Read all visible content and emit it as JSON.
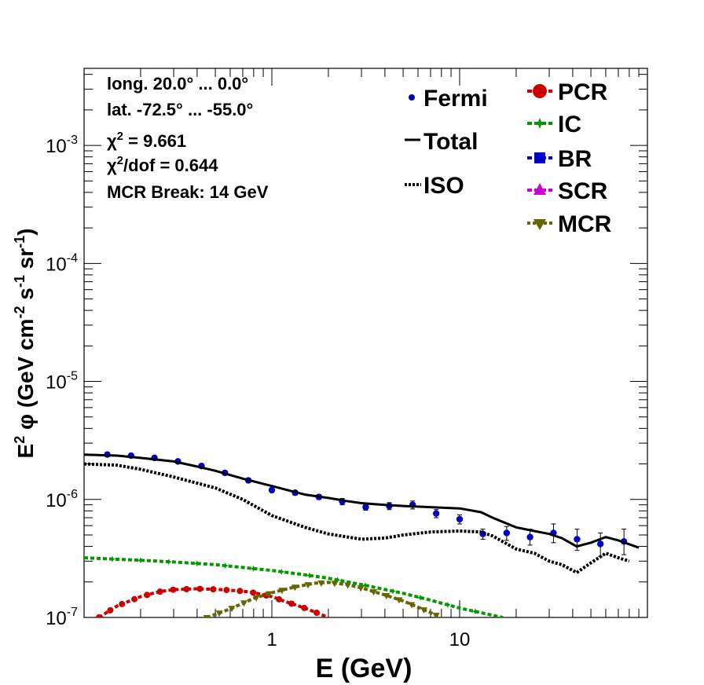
{
  "chart_data": {
    "type": "line",
    "x_scale": "log",
    "y_scale": "log",
    "xlim": [
      0.1,
      100
    ],
    "ylim": [
      1e-07,
      0.0045
    ],
    "xlabel": "E (GeV)",
    "ylabel": {
      "pre": "E",
      "sup1": "2",
      "phi": " φ (GeV cm",
      "sup2": "-2",
      "mid1": " s",
      "sup3": "-1",
      "mid2": " sr",
      "sup4": "-1",
      "post": ")"
    },
    "x_ticks": [
      {
        "v": 1,
        "label": "1"
      },
      {
        "v": 10,
        "label": "10"
      }
    ],
    "y_ticks": [
      {
        "v": 1e-07,
        "base": "10",
        "exp": "-7"
      },
      {
        "v": 1e-06,
        "base": "10",
        "exp": "-6"
      },
      {
        "v": 1e-05,
        "base": "10",
        "exp": "-5"
      },
      {
        "v": 0.0001,
        "base": "10",
        "exp": "-4"
      },
      {
        "v": 0.001,
        "base": "10",
        "exp": "-3"
      }
    ],
    "annotations": {
      "longitude": "long. 20.0° ... 0.0°",
      "latitude": "lat. -72.5° ... -55.0°",
      "chi2": {
        "sym": "χ",
        "sup": "2",
        "rest": " = 9.661"
      },
      "chi2dof": {
        "sym": "χ",
        "sup": "2",
        "rest": "/dof = 0.644"
      },
      "mcr_break": "MCR Break: 14 GeV"
    },
    "legend": [
      {
        "key": "fermi",
        "label": "Fermi",
        "color": "#0000cc",
        "style": "dot"
      },
      {
        "key": "total",
        "label": "Total",
        "color": "#000000",
        "style": "line"
      },
      {
        "key": "iso",
        "label": "ISO",
        "color": "#000000",
        "style": "dotted"
      },
      {
        "key": "pcr",
        "label": "PCR",
        "color": "#cc0000",
        "style": "circle"
      },
      {
        "key": "ic",
        "label": "IC",
        "color": "#009900",
        "style": "star"
      },
      {
        "key": "br",
        "label": "BR",
        "color": "#0000cc",
        "style": "square"
      },
      {
        "key": "scr",
        "label": "SCR",
        "color": "#cc00cc",
        "style": "triangle"
      },
      {
        "key": "mcr",
        "label": "MCR",
        "color": "#666600",
        "style": "triangle-down"
      }
    ],
    "series": [
      {
        "key": "fermi",
        "name": "Fermi",
        "kind": "points",
        "x": [
          0.133,
          0.178,
          0.237,
          0.316,
          0.422,
          0.562,
          0.75,
          1.0,
          1.33,
          1.78,
          2.37,
          3.16,
          4.22,
          5.62,
          7.5,
          10.0,
          13.3,
          17.8,
          23.7,
          31.6,
          42.2,
          56.2,
          75.0
        ],
        "y": [
          2.4e-06,
          2.35e-06,
          2.25e-06,
          2.1e-06,
          1.92e-06,
          1.68e-06,
          1.45e-06,
          1.2e-06,
          1.14e-06,
          1.05e-06,
          9.6e-07,
          8.6e-07,
          8.8e-07,
          9e-07,
          7.6e-07,
          6.8e-07,
          5.1e-07,
          5.2e-07,
          4.8e-07,
          5.2e-07,
          4.6e-07,
          4.2e-07,
          4.4e-07
        ],
        "err_lo": [
          2.3e-06,
          2.27e-06,
          2.17e-06,
          2.03e-06,
          1.85e-06,
          1.62e-06,
          1.39e-06,
          1.15e-06,
          1.09e-06,
          1e-06,
          9e-07,
          8.1e-07,
          8.2e-07,
          8.3e-07,
          7e-07,
          6.2e-07,
          4.6e-07,
          4.5e-07,
          4.1e-07,
          4.3e-07,
          3.7e-07,
          3.3e-07,
          3.4e-07
        ],
        "err_hi": [
          2.5e-06,
          2.43e-06,
          2.33e-06,
          2.17e-06,
          1.99e-06,
          1.74e-06,
          1.51e-06,
          1.25e-06,
          1.19e-06,
          1.1e-06,
          1.02e-06,
          9.1e-07,
          9.4e-07,
          9.7e-07,
          8.2e-07,
          7.4e-07,
          5.6e-07,
          5.9e-07,
          5.6e-07,
          6.2e-07,
          5.6e-07,
          5.2e-07,
          5.6e-07
        ]
      },
      {
        "key": "total",
        "name": "Total",
        "kind": "line",
        "color": "#000000",
        "x": [
          0.1,
          0.15,
          0.2,
          0.3,
          0.4,
          0.5,
          0.7,
          1.0,
          1.5,
          2.0,
          2.5,
          3.0,
          4.0,
          5.0,
          7.0,
          10.0,
          13.0,
          15.0,
          20.0,
          25.0,
          30.0,
          35.0,
          42.0,
          50.0,
          60.0,
          70.0,
          90.0
        ],
        "y": [
          2.4e-06,
          2.35e-06,
          2.25e-06,
          2.1e-06,
          1.9e-06,
          1.75e-06,
          1.5e-06,
          1.3e-06,
          1.1e-06,
          1.03e-06,
          9.7e-07,
          9.3e-07,
          9e-07,
          8.8e-07,
          8.6e-07,
          8.4e-07,
          7.8e-07,
          7e-07,
          5.8e-07,
          5.4e-07,
          5.1e-07,
          4.7e-07,
          4e-07,
          4.3e-07,
          4.8e-07,
          4.5e-07,
          3.9e-07
        ]
      },
      {
        "key": "iso",
        "name": "ISO",
        "kind": "dotted",
        "color": "#000000",
        "x": [
          0.1,
          0.15,
          0.2,
          0.3,
          0.5,
          0.7,
          1.0,
          1.5,
          2.0,
          3.0,
          4.0,
          5.0,
          7.0,
          10.0,
          13.0,
          15.0,
          20.0,
          25.0,
          30.0,
          35.0,
          42.0,
          50.0,
          60.0,
          70.0,
          80.0
        ],
        "y": [
          2e-06,
          1.95e-06,
          1.8e-06,
          1.55e-06,
          1.25e-06,
          1e-06,
          7.3e-07,
          5.8e-07,
          5.1e-07,
          4.6e-07,
          4.7e-07,
          5e-07,
          5.3e-07,
          5.4e-07,
          5.3e-07,
          4.9e-07,
          3.8e-07,
          3.5e-07,
          3e-07,
          2.8e-07,
          2.4e-07,
          2.9e-07,
          3.5e-07,
          3.2e-07,
          3e-07
        ]
      },
      {
        "key": "ic",
        "name": "IC",
        "kind": "dashed-markers",
        "color": "#009900",
        "x": [
          0.1,
          0.2,
          0.3,
          0.5,
          0.7,
          1.0,
          1.5,
          2.0,
          3.0,
          5.0,
          7.0,
          10.0,
          17.0
        ],
        "y": [
          3.2e-07,
          3.05e-07,
          2.95e-07,
          2.8e-07,
          2.65e-07,
          2.5e-07,
          2.3e-07,
          2.15e-07,
          1.9e-07,
          1.6e-07,
          1.4e-07,
          1.2e-07,
          1e-07
        ]
      },
      {
        "key": "pcr",
        "name": "PCR",
        "kind": "dashed-markers",
        "color": "#cc0000",
        "x": [
          0.12,
          0.15,
          0.2,
          0.25,
          0.3,
          0.4,
          0.5,
          0.6,
          0.7,
          0.8,
          1.0,
          1.2,
          1.5,
          1.8,
          2.0
        ],
        "y": [
          1e-07,
          1.25e-07,
          1.5e-07,
          1.65e-07,
          1.72e-07,
          1.75e-07,
          1.73e-07,
          1.7e-07,
          1.67e-07,
          1.62e-07,
          1.5e-07,
          1.35e-07,
          1.2e-07,
          1.07e-07,
          1e-07
        ]
      },
      {
        "key": "mcr",
        "name": "MCR",
        "kind": "dashed-markers",
        "color": "#666600",
        "x": [
          0.45,
          0.6,
          0.8,
          1.0,
          1.3,
          1.7,
          2.0,
          2.5,
          3.0,
          4.0,
          5.0,
          6.0,
          7.0,
          8.0
        ],
        "y": [
          1e-07,
          1.18e-07,
          1.45e-07,
          1.62e-07,
          1.8e-07,
          1.95e-07,
          1.98e-07,
          1.9e-07,
          1.78e-07,
          1.55e-07,
          1.38e-07,
          1.22e-07,
          1.1e-07,
          1e-07
        ]
      }
    ],
    "grid": false,
    "legend_placement": "top-right"
  }
}
